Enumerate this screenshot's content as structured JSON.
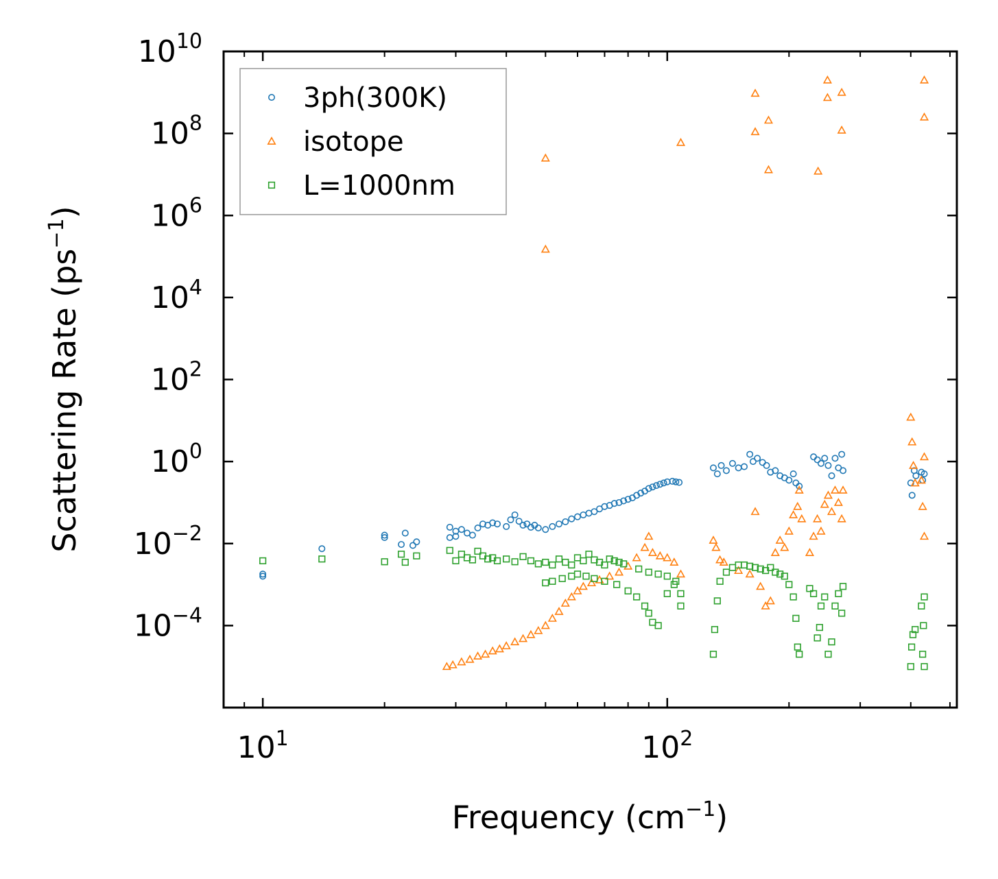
{
  "chart_data": {
    "type": "scatter",
    "xscale": "log",
    "yscale": "log",
    "xlim": [
      8,
      520
    ],
    "ylim": [
      1e-06,
      10000000000
    ],
    "xlabel": {
      "base": "Frequency (cm",
      "sup": "−1",
      "tail": ")"
    },
    "ylabel": {
      "base": "Scattering Rate (ps",
      "sup": "−1",
      "tail": ")"
    },
    "xticks": [
      {
        "value": 10,
        "base": "10",
        "exp": "1"
      },
      {
        "value": 100,
        "base": "10",
        "exp": "2"
      }
    ],
    "yticks": [
      {
        "value": 0.0001,
        "base": "10",
        "exp": "−4"
      },
      {
        "value": 0.01,
        "base": "10",
        "exp": "−2"
      },
      {
        "value": 1,
        "base": "10",
        "exp": "0"
      },
      {
        "value": 100,
        "base": "10",
        "exp": "2"
      },
      {
        "value": 10000,
        "base": "10",
        "exp": "4"
      },
      {
        "value": 1000000,
        "base": "10",
        "exp": "6"
      },
      {
        "value": 100000000,
        "base": "10",
        "exp": "8"
      },
      {
        "value": 10000000000,
        "base": "10",
        "exp": "10"
      }
    ],
    "legend_position": "top-left",
    "series": [
      {
        "name": "3ph(300K)",
        "marker": "circle",
        "color": "#1f77b4",
        "points": [
          [
            10,
            0.0018
          ],
          [
            10,
            0.0016
          ],
          [
            14,
            0.0075
          ],
          [
            20,
            0.016
          ],
          [
            20,
            0.014
          ],
          [
            22,
            0.0095
          ],
          [
            22.5,
            0.018
          ],
          [
            24,
            0.011
          ],
          [
            23.5,
            0.009
          ],
          [
            29,
            0.025
          ],
          [
            29,
            0.014
          ],
          [
            30,
            0.02
          ],
          [
            30,
            0.015
          ],
          [
            31,
            0.022
          ],
          [
            32,
            0.018
          ],
          [
            33,
            0.016
          ],
          [
            34,
            0.024
          ],
          [
            35,
            0.03
          ],
          [
            36,
            0.028
          ],
          [
            37,
            0.032
          ],
          [
            38,
            0.03
          ],
          [
            40,
            0.026
          ],
          [
            41,
            0.038
          ],
          [
            42,
            0.05
          ],
          [
            43,
            0.035
          ],
          [
            44,
            0.028
          ],
          [
            45,
            0.03
          ],
          [
            46,
            0.025
          ],
          [
            47,
            0.028
          ],
          [
            48,
            0.024
          ],
          [
            50,
            0.022
          ],
          [
            52,
            0.026
          ],
          [
            54,
            0.03
          ],
          [
            56,
            0.034
          ],
          [
            58,
            0.04
          ],
          [
            60,
            0.045
          ],
          [
            62,
            0.05
          ],
          [
            64,
            0.055
          ],
          [
            66,
            0.06
          ],
          [
            68,
            0.07
          ],
          [
            70,
            0.08
          ],
          [
            72,
            0.085
          ],
          [
            74,
            0.095
          ],
          [
            76,
            0.1
          ],
          [
            78,
            0.11
          ],
          [
            80,
            0.12
          ],
          [
            82,
            0.13
          ],
          [
            84,
            0.15
          ],
          [
            86,
            0.17
          ],
          [
            88,
            0.19
          ],
          [
            90,
            0.22
          ],
          [
            92,
            0.24
          ],
          [
            94,
            0.26
          ],
          [
            96,
            0.28
          ],
          [
            98,
            0.3
          ],
          [
            100,
            0.32
          ],
          [
            103,
            0.33
          ],
          [
            105,
            0.32
          ],
          [
            107,
            0.31
          ],
          [
            130,
            0.7
          ],
          [
            133,
            0.5
          ],
          [
            136,
            0.8
          ],
          [
            140,
            0.6
          ],
          [
            145,
            0.9
          ],
          [
            150,
            0.7
          ],
          [
            155,
            0.75
          ],
          [
            160,
            1.5
          ],
          [
            163,
            1.0
          ],
          [
            167,
            1.2
          ],
          [
            172,
            0.95
          ],
          [
            176,
            0.8
          ],
          [
            180,
            0.55
          ],
          [
            185,
            0.6
          ],
          [
            190,
            0.45
          ],
          [
            195,
            0.4
          ],
          [
            200,
            0.35
          ],
          [
            205,
            0.5
          ],
          [
            208,
            0.3
          ],
          [
            212,
            0.25
          ],
          [
            230,
            1.3
          ],
          [
            235,
            1.1
          ],
          [
            240,
            0.9
          ],
          [
            245,
            1.2
          ],
          [
            250,
            0.8
          ],
          [
            255,
            0.45
          ],
          [
            260,
            1.2
          ],
          [
            265,
            0.7
          ],
          [
            270,
            1.5
          ],
          [
            272,
            0.6
          ],
          [
            400,
            0.3
          ],
          [
            403,
            0.15
          ],
          [
            408,
            0.6
          ],
          [
            412,
            0.45
          ],
          [
            425,
            0.55
          ],
          [
            428,
            0.35
          ],
          [
            432,
            0.5
          ]
        ]
      },
      {
        "name": "isotope",
        "marker": "triangle",
        "color": "#ff7f0e",
        "points": [
          [
            50,
            25000000
          ],
          [
            50,
            150000
          ],
          [
            108,
            60000000
          ],
          [
            165,
            950000000
          ],
          [
            165,
            110000000
          ],
          [
            178,
            210000000
          ],
          [
            178,
            13000000
          ],
          [
            236,
            12000000
          ],
          [
            249,
            2000000000
          ],
          [
            249,
            750000000
          ],
          [
            270,
            1000000000
          ],
          [
            270,
            120000000
          ],
          [
            432,
            2000000000
          ],
          [
            432,
            250000000
          ],
          [
            28.5,
            1e-05
          ],
          [
            29.5,
            1.1e-05
          ],
          [
            31,
            1.3e-05
          ],
          [
            32.5,
            1.5e-05
          ],
          [
            34,
            1.8e-05
          ],
          [
            35.5,
            2e-05
          ],
          [
            37,
            2.4e-05
          ],
          [
            38.5,
            2.7e-05
          ],
          [
            40,
            3.2e-05
          ],
          [
            42,
            4e-05
          ],
          [
            44,
            4.8e-05
          ],
          [
            46,
            6e-05
          ],
          [
            48,
            7.5e-05
          ],
          [
            50,
            0.0001
          ],
          [
            52,
            0.00015
          ],
          [
            54,
            0.00022
          ],
          [
            56,
            0.00035
          ],
          [
            58,
            0.0005
          ],
          [
            60,
            0.0007
          ],
          [
            62,
            0.0009
          ],
          [
            65,
            0.0011
          ],
          [
            68,
            0.0013
          ],
          [
            72,
            0.0016
          ],
          [
            76,
            0.002
          ],
          [
            80,
            0.0028
          ],
          [
            84,
            0.0045
          ],
          [
            88,
            0.008
          ],
          [
            90,
            0.015
          ],
          [
            92,
            0.006
          ],
          [
            96,
            0.005
          ],
          [
            100,
            0.0045
          ],
          [
            104,
            0.0035
          ],
          [
            108,
            0.0018
          ],
          [
            130,
            0.012
          ],
          [
            132,
            0.008
          ],
          [
            135,
            0.004
          ],
          [
            138,
            0.0035
          ],
          [
            150,
            0.0022
          ],
          [
            160,
            0.0018
          ],
          [
            165,
            0.06
          ],
          [
            170,
            0.0009
          ],
          [
            175,
            0.0003
          ],
          [
            180,
            0.0004
          ],
          [
            185,
            0.006
          ],
          [
            190,
            0.012
          ],
          [
            195,
            0.008
          ],
          [
            200,
            0.02
          ],
          [
            205,
            0.05
          ],
          [
            210,
            0.08
          ],
          [
            212,
            0.2
          ],
          [
            215,
            0.04
          ],
          [
            225,
            0.006
          ],
          [
            230,
            0.015
          ],
          [
            235,
            0.04
          ],
          [
            240,
            0.02
          ],
          [
            245,
            0.09
          ],
          [
            250,
            0.15
          ],
          [
            255,
            0.06
          ],
          [
            260,
            0.2
          ],
          [
            265,
            0.1
          ],
          [
            270,
            0.04
          ],
          [
            272,
            0.2
          ],
          [
            400,
            12
          ],
          [
            403,
            3
          ],
          [
            406,
            0.8
          ],
          [
            410,
            0.3
          ],
          [
            425,
            0.35
          ],
          [
            428,
            0.08
          ],
          [
            432,
            0.015
          ],
          [
            432,
            1.3
          ]
        ]
      },
      {
        "name": "L=1000nm",
        "marker": "square",
        "color": "#2ca02c",
        "points": [
          [
            10,
            0.0038
          ],
          [
            14,
            0.0042
          ],
          [
            20,
            0.0036
          ],
          [
            22,
            0.0055
          ],
          [
            22.5,
            0.0035
          ],
          [
            24,
            0.005
          ],
          [
            29,
            0.0068
          ],
          [
            30,
            0.0038
          ],
          [
            31,
            0.0055
          ],
          [
            32,
            0.0045
          ],
          [
            33,
            0.004
          ],
          [
            34,
            0.0065
          ],
          [
            35,
            0.005
          ],
          [
            36,
            0.0042
          ],
          [
            37,
            0.0045
          ],
          [
            38,
            0.0038
          ],
          [
            40,
            0.0042
          ],
          [
            42,
            0.0036
          ],
          [
            44,
            0.0048
          ],
          [
            46,
            0.0038
          ],
          [
            48,
            0.0032
          ],
          [
            50,
            0.0035
          ],
          [
            52,
            0.003
          ],
          [
            54,
            0.0042
          ],
          [
            56,
            0.0035
          ],
          [
            58,
            0.003
          ],
          [
            60,
            0.0045
          ],
          [
            62,
            0.0038
          ],
          [
            64,
            0.0055
          ],
          [
            66,
            0.004
          ],
          [
            68,
            0.0035
          ],
          [
            70,
            0.003
          ],
          [
            72,
            0.0042
          ],
          [
            74,
            0.0038
          ],
          [
            76,
            0.0035
          ],
          [
            78,
            0.0032
          ],
          [
            50,
            0.0011
          ],
          [
            52,
            0.0012
          ],
          [
            55,
            0.0014
          ],
          [
            58,
            0.0016
          ],
          [
            60,
            0.0018
          ],
          [
            63,
            0.0016
          ],
          [
            66,
            0.0014
          ],
          [
            70,
            0.0012
          ],
          [
            75,
            0.001
          ],
          [
            80,
            0.0007
          ],
          [
            84,
            0.0005
          ],
          [
            88,
            0.0003
          ],
          [
            90,
            0.0002
          ],
          [
            92,
            0.00012
          ],
          [
            95,
            0.0001
          ],
          [
            100,
            0.0006
          ],
          [
            104,
            0.001
          ],
          [
            108,
            0.0006
          ],
          [
            108,
            0.0003
          ],
          [
            85,
            0.0024
          ],
          [
            90,
            0.002
          ],
          [
            95,
            0.0018
          ],
          [
            100,
            0.0016
          ],
          [
            105,
            0.0012
          ],
          [
            130,
            2e-05
          ],
          [
            131,
            8e-05
          ],
          [
            133,
            0.0004
          ],
          [
            135,
            0.0012
          ],
          [
            140,
            0.002
          ],
          [
            145,
            0.0026
          ],
          [
            150,
            0.003
          ],
          [
            155,
            0.003
          ],
          [
            160,
            0.0028
          ],
          [
            165,
            0.0026
          ],
          [
            170,
            0.0024
          ],
          [
            175,
            0.0022
          ],
          [
            180,
            0.0026
          ],
          [
            185,
            0.002
          ],
          [
            190,
            0.0018
          ],
          [
            195,
            0.0016
          ],
          [
            200,
            0.001
          ],
          [
            205,
            0.0005
          ],
          [
            208,
            0.00015
          ],
          [
            210,
            3e-05
          ],
          [
            212,
            2e-05
          ],
          [
            225,
            0.0008
          ],
          [
            230,
            0.0006
          ],
          [
            235,
            5e-05
          ],
          [
            238,
            9e-05
          ],
          [
            240,
            0.0003
          ],
          [
            245,
            0.0005
          ],
          [
            250,
            2e-05
          ],
          [
            255,
            4e-05
          ],
          [
            260,
            0.0003
          ],
          [
            265,
            0.0006
          ],
          [
            270,
            0.0002
          ],
          [
            272,
            0.0009
          ],
          [
            400,
            1e-05
          ],
          [
            402,
            3e-05
          ],
          [
            405,
            6e-05
          ],
          [
            410,
            8e-05
          ],
          [
            425,
            0.0003
          ],
          [
            428,
            2e-05
          ],
          [
            430,
            0.0001
          ],
          [
            432,
            1e-05
          ],
          [
            432,
            0.0005
          ]
        ]
      }
    ]
  }
}
